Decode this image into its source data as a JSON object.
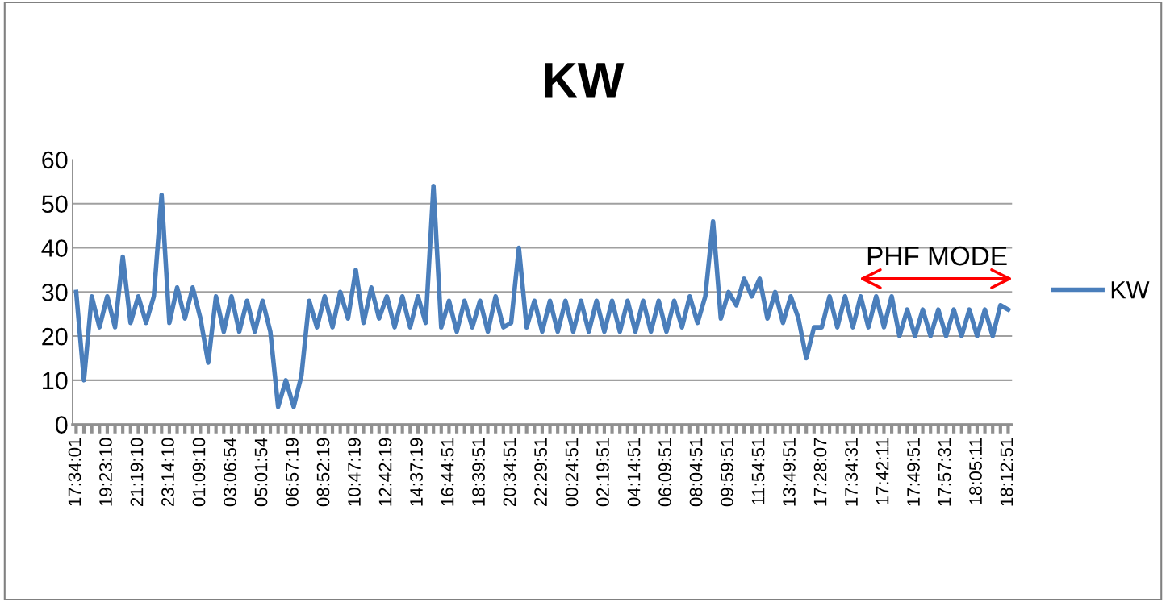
{
  "chart_data": {
    "type": "line",
    "title": "KW",
    "categories": [
      "17:34:01",
      null,
      null,
      null,
      "19:23:10",
      null,
      null,
      null,
      "21:19:10",
      null,
      null,
      null,
      "23:14:10",
      null,
      null,
      null,
      "01:09:10",
      null,
      null,
      null,
      "03:06:54",
      null,
      null,
      null,
      "05:01:54",
      null,
      null,
      null,
      "06:57:19",
      null,
      null,
      null,
      "08:52:19",
      null,
      null,
      null,
      "10:47:19",
      null,
      null,
      null,
      "12:42:19",
      null,
      null,
      null,
      "14:37:19",
      null,
      null,
      null,
      "16:44:51",
      null,
      null,
      null,
      "18:39:51",
      null,
      null,
      null,
      "20:34:51",
      null,
      null,
      null,
      "22:29:51",
      null,
      null,
      null,
      "00:24:51",
      null,
      null,
      null,
      "02:19:51",
      null,
      null,
      null,
      "04:14:51",
      null,
      null,
      null,
      "06:09:51",
      null,
      null,
      null,
      "08:04:51",
      null,
      null,
      null,
      "09:59:51",
      null,
      null,
      null,
      "11:54:51",
      null,
      null,
      null,
      "13:49:51",
      null,
      null,
      null,
      "17:28:07",
      null,
      null,
      null,
      "17:34:31",
      null,
      null,
      null,
      "17:42:11",
      null,
      null,
      null,
      "17:49:51",
      null,
      null,
      null,
      "17:57:31",
      null,
      null,
      null,
      "18:05:11",
      null,
      null,
      null,
      "18:12:51"
    ],
    "series": [
      {
        "name": "KW",
        "color": "#4a7ebb",
        "values": [
          30,
          10,
          29,
          22,
          29,
          22,
          38,
          23,
          29,
          23,
          29,
          52,
          23,
          31,
          24,
          31,
          24,
          14,
          29,
          21,
          29,
          21,
          28,
          21,
          28,
          21,
          4,
          10,
          4,
          11,
          28,
          22,
          29,
          22,
          30,
          24,
          35,
          23,
          31,
          24,
          29,
          22,
          29,
          22,
          29,
          23,
          54,
          22,
          28,
          21,
          28,
          22,
          28,
          21,
          29,
          22,
          23,
          40,
          22,
          28,
          21,
          28,
          21,
          28,
          21,
          28,
          21,
          28,
          21,
          28,
          21,
          28,
          21,
          28,
          21,
          28,
          21,
          28,
          22,
          29,
          23,
          29,
          46,
          24,
          30,
          27,
          33,
          29,
          33,
          24,
          30,
          23,
          29,
          24,
          15,
          22,
          22,
          29,
          22,
          29,
          22,
          29,
          22,
          29,
          22,
          29,
          20,
          26,
          20,
          26,
          20,
          26,
          20,
          26,
          20,
          26,
          20,
          26,
          20,
          27,
          26
        ]
      }
    ],
    "ylim": [
      0,
      60
    ],
    "yticks": [
      0,
      10,
      20,
      30,
      40,
      50,
      60
    ],
    "grid": "y",
    "legend": "right",
    "annotations": [
      "PHF MODE"
    ]
  }
}
